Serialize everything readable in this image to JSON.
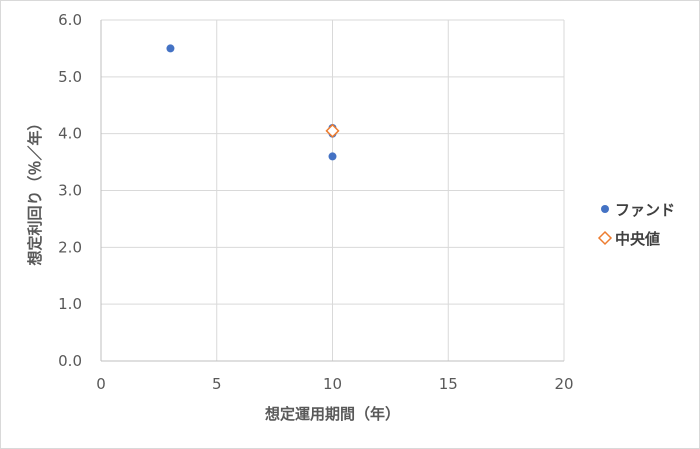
{
  "chart_data": {
    "type": "scatter",
    "xlabel": "想定運用期間（年）",
    "ylabel": "想定利回り（％／年）",
    "xlim": [
      0,
      20
    ],
    "ylim": [
      0.0,
      6.0
    ],
    "x_ticks": [
      "0",
      "5",
      "10",
      "15",
      "20"
    ],
    "y_ticks": [
      "0.0",
      "1.0",
      "2.0",
      "3.0",
      "4.0",
      "5.0",
      "6.0"
    ],
    "grid": true,
    "legend_position": "right",
    "series": [
      {
        "name": "ファンド",
        "marker": "circle",
        "color": "#4472c4",
        "points": [
          {
            "x": 3,
            "y": 5.5
          },
          {
            "x": 10,
            "y": 4.0
          },
          {
            "x": 10,
            "y": 4.1
          },
          {
            "x": 10,
            "y": 3.6
          }
        ]
      },
      {
        "name": "中央値",
        "marker": "diamond",
        "color": "#ed7d31",
        "points": [
          {
            "x": 10,
            "y": 4.05
          }
        ]
      }
    ]
  }
}
